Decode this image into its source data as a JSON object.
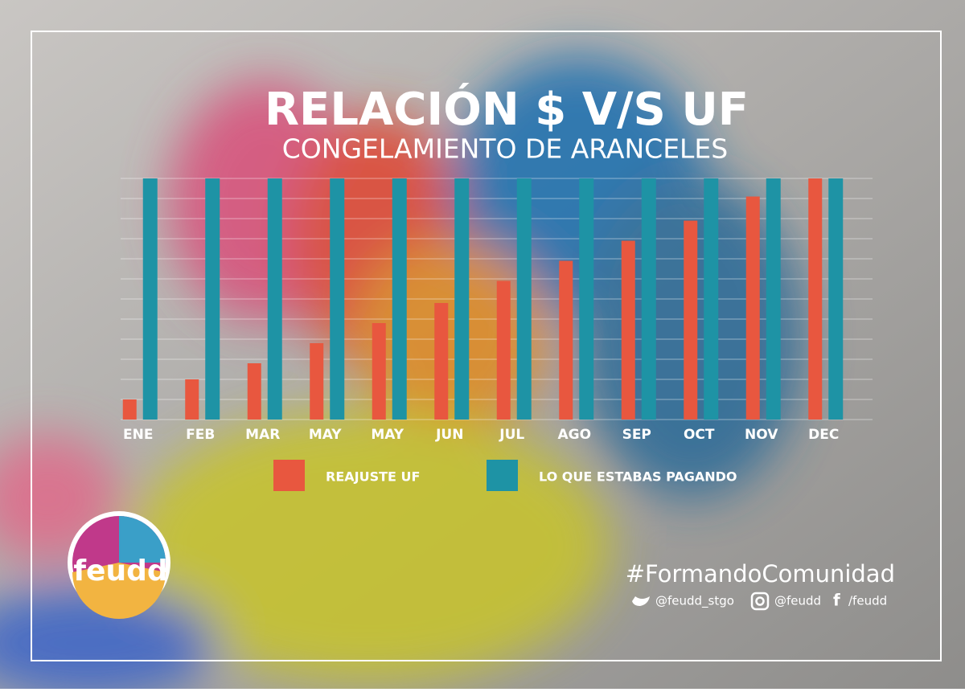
{
  "chart_data": {
    "type": "bar",
    "title": "RELACIÓN $  V/S UF",
    "subtitle": "CONGELAMIENTO DE ARANCELES",
    "categories": [
      "ENE",
      "FEB",
      "MAR",
      "MAY",
      "MAY",
      "JUN",
      "JUL",
      "AGO",
      "SEP",
      "OCT",
      "NOV",
      "DEC"
    ],
    "series": [
      {
        "name": "REAJUSTE UF",
        "color": "#e8573f",
        "values": [
          1.0,
          2.0,
          2.8,
          3.8,
          4.8,
          5.8,
          6.9,
          7.9,
          8.9,
          9.9,
          11.1,
          12
        ]
      },
      {
        "name": "LO QUE ESTABAS PAGANDO",
        "color": "#1e93a5",
        "values": [
          12,
          12,
          12,
          12,
          12,
          12,
          12,
          12,
          12,
          12,
          12,
          12
        ]
      }
    ],
    "ylim": [
      0,
      12
    ],
    "yticks": [
      0,
      1,
      2,
      3,
      4,
      5,
      6,
      7,
      8,
      9,
      10,
      11,
      12
    ],
    "grid": true
  },
  "logo": "feudd",
  "footer": {
    "hashtag": "#FormandoComunidad",
    "twitter": "@feudd_stgo",
    "instagram": "@feudd",
    "facebook": "/feudd"
  }
}
